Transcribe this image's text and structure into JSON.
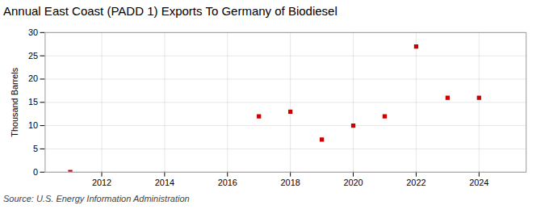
{
  "chart_data": {
    "type": "scatter",
    "title": "Annual East Coast (PADD 1) Exports To Germany of Biodiesel",
    "ylabel": "Thousand Barrels",
    "source": "Source: U.S. Energy Information Administration",
    "x": [
      2011,
      2017,
      2018,
      2019,
      2020,
      2021,
      2022,
      2023,
      2024
    ],
    "values": [
      0,
      12,
      13,
      7,
      10,
      12,
      27,
      16,
      16
    ],
    "color": "#cc0000",
    "marker": "square",
    "xlim": [
      2010.2,
      2025.5
    ],
    "ylim": [
      0,
      30
    ],
    "xticks": [
      2012,
      2014,
      2016,
      2018,
      2020,
      2022,
      2024
    ],
    "yticks": [
      0,
      5,
      10,
      15,
      20,
      25,
      30
    ],
    "grid": true
  }
}
